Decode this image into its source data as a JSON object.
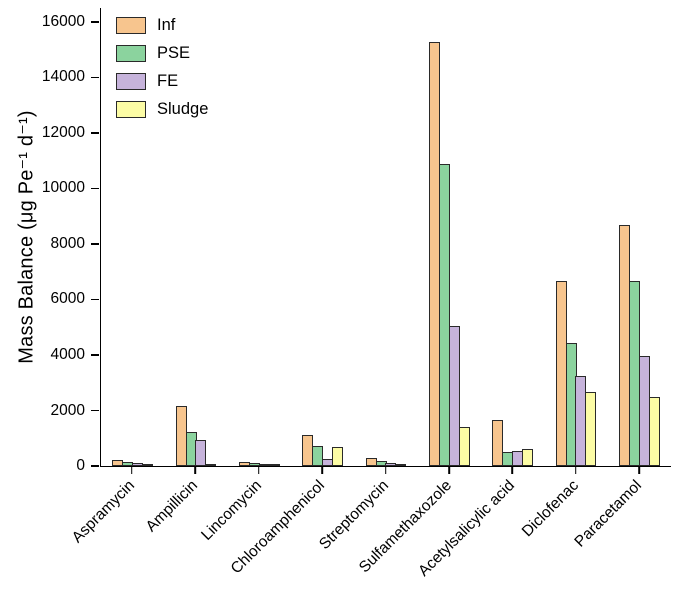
{
  "chart_data": {
    "type": "bar",
    "title": "",
    "xlabel": "",
    "ylabel": "Mass Balance (μg Pe⁻¹ d⁻¹)",
    "ylim": [
      0,
      16500
    ],
    "yticks": [
      0,
      2000,
      4000,
      6000,
      8000,
      10000,
      12000,
      14000,
      16000
    ],
    "grid": false,
    "legend_position": "top-left",
    "bar_border_color": "#2a2a2a",
    "categories": [
      "Aspramycin",
      "Ampillicin",
      "Lincomycin",
      "Chloroamphenicol",
      "Streptomycin",
      "Sulfamethaxozole",
      "Acetylsalicylic acid",
      "Diclofenac",
      "Paracetamol"
    ],
    "series": [
      {
        "name": "Inf",
        "color": "#F7C58E",
        "values": [
          220,
          2180,
          150,
          1130,
          290,
          15270,
          1670,
          6650,
          8690
        ]
      },
      {
        "name": "PSE",
        "color": "#8BD39E",
        "values": [
          145,
          1240,
          110,
          730,
          180,
          10870,
          510,
          4440,
          6650
        ]
      },
      {
        "name": "FE",
        "color": "#C6B3DB",
        "values": [
          110,
          950,
          75,
          260,
          110,
          5060,
          545,
          3240,
          3960
        ]
      },
      {
        "name": "Sludge",
        "color": "#FCFCA5",
        "values": [
          40,
          60,
          40,
          690,
          70,
          1420,
          600,
          2650,
          2480
        ]
      }
    ]
  }
}
